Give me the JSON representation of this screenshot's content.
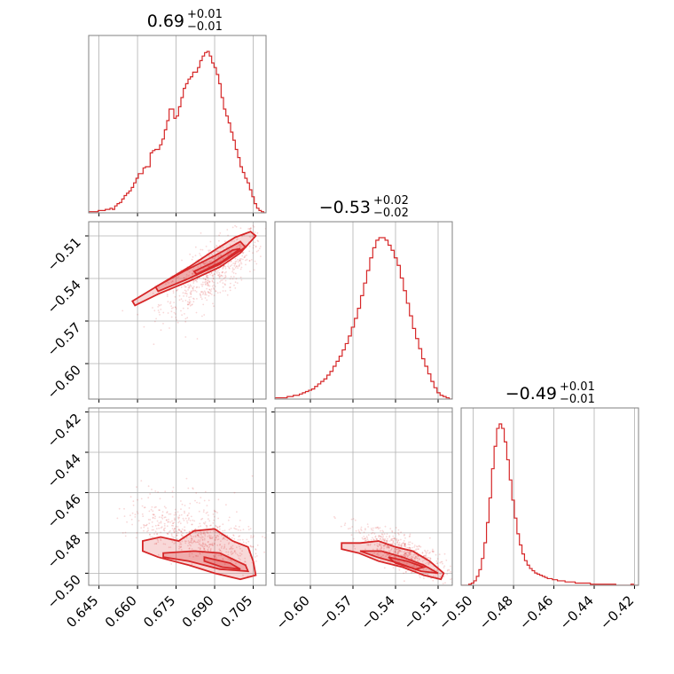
{
  "chart_data": {
    "type": "corner",
    "color": "#d62728",
    "parameters": [
      {
        "range": [
          0.641,
          0.71
        ],
        "ticks": [
          0.645,
          0.66,
          0.675,
          0.69,
          0.705
        ],
        "tick_labels": [
          "0.645",
          "0.660",
          "0.675",
          "0.690",
          "0.705"
        ]
      },
      {
        "range": [
          -0.625,
          -0.5
        ],
        "ticks": [
          -0.6,
          -0.57,
          -0.54,
          -0.51
        ],
        "tick_labels": [
          "−0.60",
          "−0.57",
          "−0.54",
          "−0.51"
        ]
      },
      {
        "range": [
          -0.506,
          -0.418
        ],
        "ticks": [
          -0.5,
          -0.48,
          -0.46,
          -0.44,
          -0.42
        ],
        "tick_labels": [
          "−0.50",
          "−0.48",
          "−0.46",
          "−0.44",
          "−0.42"
        ]
      }
    ],
    "titles": [
      {
        "value": "0.69",
        "plus": "+0.01",
        "minus": "−0.01"
      },
      {
        "value": "−0.53",
        "plus": "+0.02",
        "minus": "−0.02"
      },
      {
        "value": "−0.49",
        "plus": "+0.01",
        "minus": "−0.01"
      }
    ],
    "histograms": [
      {
        "bins": [
          0.641,
          0.71
        ],
        "counts": [
          1,
          1,
          1,
          1,
          2,
          2,
          2,
          3,
          3,
          4,
          3,
          6,
          8,
          9,
          12,
          15,
          17,
          19,
          22,
          26,
          30,
          34,
          34,
          39,
          40,
          40,
          52,
          54,
          55,
          55,
          59,
          64,
          72,
          80,
          90,
          90,
          82,
          84,
          92,
          100,
          108,
          112,
          116,
          118,
          122,
          122,
          126,
          132,
          136,
          139,
          140,
          136,
          130,
          126,
          120,
          112,
          100,
          90,
          84,
          78,
          70,
          63,
          55,
          48,
          40,
          35,
          30,
          26,
          20,
          14,
          8,
          4,
          2,
          1,
          0
        ]
      },
      {
        "bins": [
          -0.625,
          -0.5
        ],
        "counts": [
          1,
          1,
          1,
          1,
          2,
          2,
          3,
          3,
          4,
          5,
          6,
          7,
          8,
          10,
          12,
          14,
          16,
          19,
          22,
          26,
          30,
          34,
          39,
          44,
          50,
          57,
          64,
          72,
          82,
          92,
          102,
          112,
          120,
          126,
          128,
          128,
          126,
          122,
          118,
          112,
          106,
          96,
          86,
          76,
          66,
          56,
          48,
          40,
          32,
          26,
          20,
          14,
          9,
          5,
          3,
          2,
          1,
          0
        ]
      },
      {
        "bins": [
          -0.506,
          -0.418
        ],
        "counts": [
          0,
          0,
          0,
          1,
          2,
          4,
          8,
          14,
          24,
          38,
          56,
          78,
          104,
          124,
          140,
          144,
          140,
          128,
          112,
          94,
          76,
          60,
          46,
          36,
          28,
          22,
          18,
          15,
          13,
          11,
          10,
          9,
          8,
          7,
          6,
          6,
          5,
          5,
          4,
          4,
          4,
          3,
          3,
          3,
          3,
          2,
          2,
          2,
          2,
          2,
          2,
          1,
          1,
          1,
          1,
          1,
          1,
          1,
          1,
          1,
          1,
          0,
          0,
          0,
          0,
          0,
          0,
          1,
          0,
          0
        ]
      }
    ]
  }
}
